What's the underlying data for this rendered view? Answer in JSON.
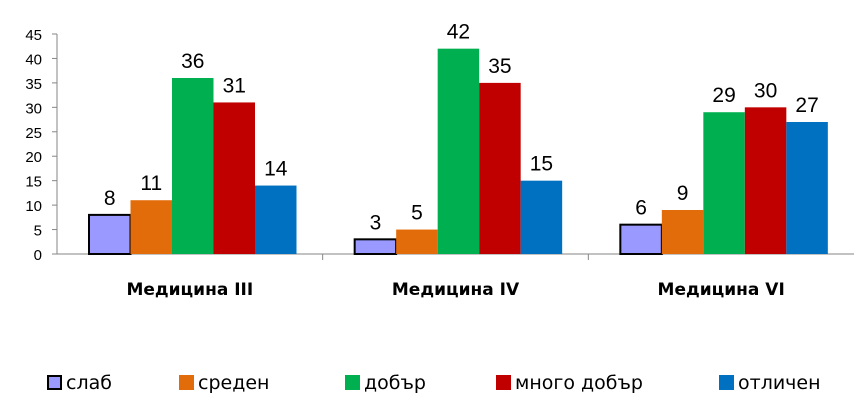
{
  "chart_data": {
    "type": "bar",
    "categories": [
      "Медицина III",
      "Медицина IV",
      "Медицина VI"
    ],
    "series": [
      {
        "name": "слаб",
        "values": [
          8,
          3,
          6
        ],
        "color": "#9999ff",
        "outlined": true
      },
      {
        "name": "среден",
        "values": [
          11,
          5,
          9
        ],
        "color": "#e36c0a"
      },
      {
        "name": "добър",
        "values": [
          36,
          42,
          29
        ],
        "color": "#00b050"
      },
      {
        "name": "много добър",
        "values": [
          31,
          35,
          30
        ],
        "color": "#c00000"
      },
      {
        "name": "отличен",
        "values": [
          14,
          15,
          27
        ],
        "color": "#0070c0"
      }
    ],
    "ylim": [
      0,
      45
    ],
    "yticks": [
      0,
      5,
      10,
      15,
      20,
      25,
      30,
      35,
      40,
      45
    ],
    "grid": false,
    "legend": "bottom",
    "data_labels": true
  }
}
